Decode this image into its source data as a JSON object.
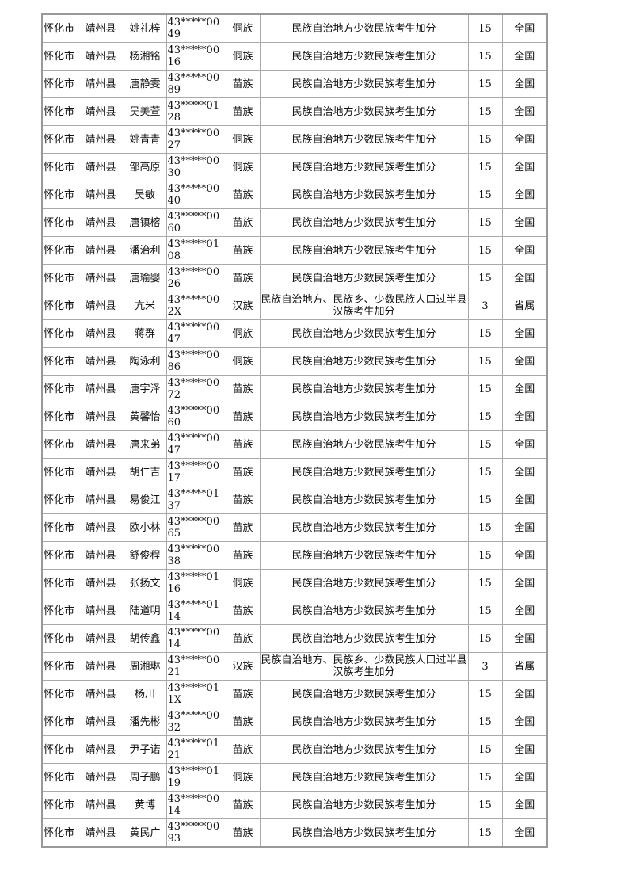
{
  "table": {
    "rows": [
      [
        "怀化市",
        "靖州县",
        "姚礼梓",
        "43*****0049",
        "侗族",
        "民族自治地方少数民族考生加分",
        "15",
        "全国"
      ],
      [
        "怀化市",
        "靖州县",
        "杨湘铭",
        "43*****0016",
        "侗族",
        "民族自治地方少数民族考生加分",
        "15",
        "全国"
      ],
      [
        "怀化市",
        "靖州县",
        "唐静雯",
        "43*****0089",
        "苗族",
        "民族自治地方少数民族考生加分",
        "15",
        "全国"
      ],
      [
        "怀化市",
        "靖州县",
        "吴美萱",
        "43*****0128",
        "苗族",
        "民族自治地方少数民族考生加分",
        "15",
        "全国"
      ],
      [
        "怀化市",
        "靖州县",
        "姚青青",
        "43*****0027",
        "侗族",
        "民族自治地方少数民族考生加分",
        "15",
        "全国"
      ],
      [
        "怀化市",
        "靖州县",
        "邹高原",
        "43*****0030",
        "侗族",
        "民族自治地方少数民族考生加分",
        "15",
        "全国"
      ],
      [
        "怀化市",
        "靖州县",
        "吴敏",
        "43*****0040",
        "苗族",
        "民族自治地方少数民族考生加分",
        "15",
        "全国"
      ],
      [
        "怀化市",
        "靖州县",
        "唐镇榕",
        "43*****0060",
        "苗族",
        "民族自治地方少数民族考生加分",
        "15",
        "全国"
      ],
      [
        "怀化市",
        "靖州县",
        "潘治利",
        "43*****0108",
        "苗族",
        "民族自治地方少数民族考生加分",
        "15",
        "全国"
      ],
      [
        "怀化市",
        "靖州县",
        "唐瑜婴",
        "43*****0026",
        "苗族",
        "民族自治地方少数民族考生加分",
        "15",
        "全国"
      ],
      [
        "怀化市",
        "靖州县",
        "亢米",
        "43*****002X",
        "汉族",
        "民族自治地方、民族乡、少数民族人口过半县汉族考生加分",
        "3",
        "省属"
      ],
      [
        "怀化市",
        "靖州县",
        "蒋群",
        "43*****0047",
        "侗族",
        "民族自治地方少数民族考生加分",
        "15",
        "全国"
      ],
      [
        "怀化市",
        "靖州县",
        "陶泳利",
        "43*****0086",
        "侗族",
        "民族自治地方少数民族考生加分",
        "15",
        "全国"
      ],
      [
        "怀化市",
        "靖州县",
        "唐宇泽",
        "43*****0072",
        "苗族",
        "民族自治地方少数民族考生加分",
        "15",
        "全国"
      ],
      [
        "怀化市",
        "靖州县",
        "黄馨怡",
        "43*****0060",
        "苗族",
        "民族自治地方少数民族考生加分",
        "15",
        "全国"
      ],
      [
        "怀化市",
        "靖州县",
        "唐来弟",
        "43*****0047",
        "苗族",
        "民族自治地方少数民族考生加分",
        "15",
        "全国"
      ],
      [
        "怀化市",
        "靖州县",
        "胡仁吉",
        "43*****0017",
        "苗族",
        "民族自治地方少数民族考生加分",
        "15",
        "全国"
      ],
      [
        "怀化市",
        "靖州县",
        "易俊江",
        "43*****0137",
        "苗族",
        "民族自治地方少数民族考生加分",
        "15",
        "全国"
      ],
      [
        "怀化市",
        "靖州县",
        "欧小林",
        "43*****0065",
        "苗族",
        "民族自治地方少数民族考生加分",
        "15",
        "全国"
      ],
      [
        "怀化市",
        "靖州县",
        "舒俊程",
        "43*****0038",
        "苗族",
        "民族自治地方少数民族考生加分",
        "15",
        "全国"
      ],
      [
        "怀化市",
        "靖州县",
        "张扬文",
        "43*****0116",
        "侗族",
        "民族自治地方少数民族考生加分",
        "15",
        "全国"
      ],
      [
        "怀化市",
        "靖州县",
        "陆道明",
        "43*****0114",
        "苗族",
        "民族自治地方少数民族考生加分",
        "15",
        "全国"
      ],
      [
        "怀化市",
        "靖州县",
        "胡传鑫",
        "43*****0014",
        "苗族",
        "民族自治地方少数民族考生加分",
        "15",
        "全国"
      ],
      [
        "怀化市",
        "靖州县",
        "周湘琳",
        "43*****0021",
        "汉族",
        "民族自治地方、民族乡、少数民族人口过半县汉族考生加分",
        "3",
        "省属"
      ],
      [
        "怀化市",
        "靖州县",
        "杨川",
        "43*****011X",
        "苗族",
        "民族自治地方少数民族考生加分",
        "15",
        "全国"
      ],
      [
        "怀化市",
        "靖州县",
        "潘先彬",
        "43*****0032",
        "苗族",
        "民族自治地方少数民族考生加分",
        "15",
        "全国"
      ],
      [
        "怀化市",
        "靖州县",
        "尹子诺",
        "43*****0121",
        "苗族",
        "民族自治地方少数民族考生加分",
        "15",
        "全国"
      ],
      [
        "怀化市",
        "靖州县",
        "周子鹏",
        "43*****0119",
        "侗族",
        "民族自治地方少数民族考生加分",
        "15",
        "全国"
      ],
      [
        "怀化市",
        "靖州县",
        "黄博",
        "43*****0014",
        "苗族",
        "民族自治地方少数民族考生加分",
        "15",
        "全国"
      ],
      [
        "怀化市",
        "靖州县",
        "黄民广",
        "43*****0093",
        "苗族",
        "民族自治地方少数民族考生加分",
        "15",
        "全国"
      ]
    ]
  }
}
